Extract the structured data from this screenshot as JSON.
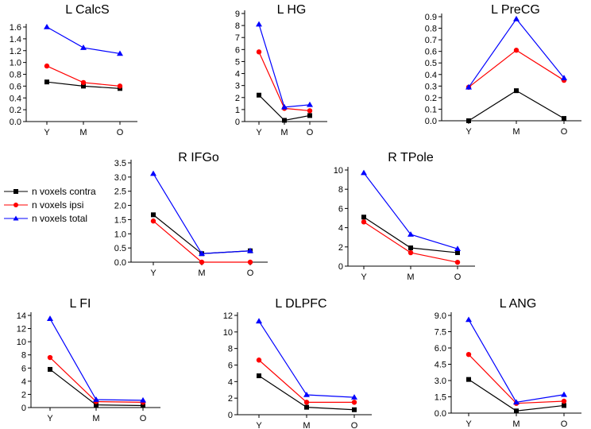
{
  "legend": [
    {
      "label": "n voxels contra",
      "color": "#000000",
      "marker": "square"
    },
    {
      "label": "n voxels ipsi",
      "color": "#ff0000",
      "marker": "circle"
    },
    {
      "label": "n voxels total",
      "color": "#0000ff",
      "marker": "triangle"
    }
  ],
  "chart_data": [
    {
      "type": "line",
      "title": "L CalcS",
      "categories": [
        "Y",
        "M",
        "O"
      ],
      "yticks": [
        "0.0",
        "0.2",
        "0.4",
        "0.6",
        "0.8",
        "1.0",
        "1.2",
        "1.4",
        "1.6"
      ],
      "ylim": [
        0,
        1.6
      ],
      "series": [
        {
          "name": "n voxels contra",
          "values": [
            0.67,
            0.6,
            0.56
          ]
        },
        {
          "name": "n voxels ipsi",
          "values": [
            0.94,
            0.66,
            0.6
          ]
        },
        {
          "name": "n voxels total",
          "values": [
            1.6,
            1.25,
            1.15
          ]
        }
      ]
    },
    {
      "type": "line",
      "title": "L HG",
      "categories": [
        "Y",
        "M",
        "O"
      ],
      "yticks": [
        "0",
        "1",
        "2",
        "3",
        "4",
        "5",
        "6",
        "7",
        "8",
        "9"
      ],
      "ylim": [
        0,
        9
      ],
      "series": [
        {
          "name": "n voxels contra",
          "values": [
            2.2,
            0.1,
            0.5
          ]
        },
        {
          "name": "n voxels ipsi",
          "values": [
            5.8,
            1.1,
            0.9
          ]
        },
        {
          "name": "n voxels total",
          "values": [
            8.1,
            1.2,
            1.4
          ]
        }
      ]
    },
    {
      "type": "line",
      "title": "L PreCG",
      "categories": [
        "Y",
        "M",
        "O"
      ],
      "yticks": [
        "0.0",
        "0.1",
        "0.2",
        "0.3",
        "0.4",
        "0.5",
        "0.6",
        "0.7",
        "0.8",
        "0.9"
      ],
      "ylim": [
        0,
        0.9
      ],
      "series": [
        {
          "name": "n voxels contra",
          "values": [
            0.0,
            0.26,
            0.02
          ]
        },
        {
          "name": "n voxels ipsi",
          "values": [
            0.29,
            0.61,
            0.35
          ]
        },
        {
          "name": "n voxels total",
          "values": [
            0.29,
            0.88,
            0.37
          ]
        }
      ]
    },
    {
      "type": "line",
      "title": "R IFGo",
      "categories": [
        "Y",
        "M",
        "O"
      ],
      "yticks": [
        "0.0",
        "0.5",
        "1.0",
        "1.5",
        "2.0",
        "2.5",
        "3.0",
        "3.5"
      ],
      "ylim": [
        0,
        3.5
      ],
      "series": [
        {
          "name": "n voxels contra",
          "values": [
            1.67,
            0.3,
            0.4
          ]
        },
        {
          "name": "n voxels ipsi",
          "values": [
            1.45,
            0.0,
            0.0
          ]
        },
        {
          "name": "n voxels total",
          "values": [
            3.12,
            0.3,
            0.4
          ]
        }
      ]
    },
    {
      "type": "line",
      "title": "R TPole",
      "categories": [
        "Y",
        "M",
        "O"
      ],
      "yticks": [
        "0",
        "2",
        "4",
        "6",
        "8",
        "10"
      ],
      "ylim": [
        0,
        10
      ],
      "series": [
        {
          "name": "n voxels contra",
          "values": [
            5.1,
            1.9,
            1.4
          ]
        },
        {
          "name": "n voxels ipsi",
          "values": [
            4.6,
            1.4,
            0.4
          ]
        },
        {
          "name": "n voxels total",
          "values": [
            9.7,
            3.3,
            1.8
          ]
        }
      ]
    },
    {
      "type": "line",
      "title": "L FI",
      "categories": [
        "Y",
        "M",
        "O"
      ],
      "yticks": [
        "0",
        "2",
        "4",
        "6",
        "8",
        "10",
        "12",
        "14"
      ],
      "ylim": [
        0,
        14
      ],
      "series": [
        {
          "name": "n voxels contra",
          "values": [
            5.8,
            0.4,
            0.3
          ]
        },
        {
          "name": "n voxels ipsi",
          "values": [
            7.6,
            0.9,
            0.8
          ]
        },
        {
          "name": "n voxels total",
          "values": [
            13.5,
            1.2,
            1.1
          ]
        }
      ]
    },
    {
      "type": "line",
      "title": "L DLPFC",
      "categories": [
        "Y",
        "M",
        "O"
      ],
      "yticks": [
        "0",
        "2",
        "4",
        "6",
        "8",
        "10",
        "12"
      ],
      "ylim": [
        0,
        12
      ],
      "series": [
        {
          "name": "n voxels contra",
          "values": [
            4.7,
            0.9,
            0.6
          ]
        },
        {
          "name": "n voxels ipsi",
          "values": [
            6.6,
            1.5,
            1.5
          ]
        },
        {
          "name": "n voxels total",
          "values": [
            11.3,
            2.4,
            2.1
          ]
        }
      ]
    },
    {
      "type": "line",
      "title": "L ANG",
      "categories": [
        "Y",
        "M",
        "O"
      ],
      "yticks": [
        "0.0",
        "1.5",
        "3.0",
        "4.5",
        "6.0",
        "7.5",
        "9.0"
      ],
      "ylim": [
        0,
        9
      ],
      "series": [
        {
          "name": "n voxels contra",
          "values": [
            3.1,
            0.2,
            0.7
          ]
        },
        {
          "name": "n voxels ipsi",
          "values": [
            5.4,
            0.9,
            1.1
          ]
        },
        {
          "name": "n voxels total",
          "values": [
            8.6,
            1.0,
            1.7
          ]
        }
      ]
    }
  ]
}
